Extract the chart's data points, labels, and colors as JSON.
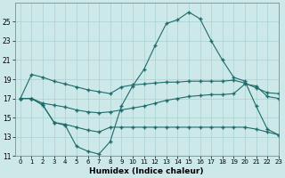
{
  "xlabel": "Humidex (Indice chaleur)",
  "background_color": "#cde8e8",
  "grid_color": "#aad0d0",
  "line_color": "#1e6b6b",
  "line1_y": [
    17,
    19.5,
    19.2,
    18.8,
    18.5,
    18.2,
    17.9,
    17.7,
    17.5,
    18.2,
    18.4,
    18.5,
    18.6,
    18.7,
    18.7,
    18.8,
    18.8,
    18.8,
    18.8,
    18.9,
    18.6,
    18.1,
    17.6,
    17.5
  ],
  "line2_y": [
    17,
    17,
    16.3,
    14.5,
    14.2,
    12.0,
    11.5,
    11.2,
    12.5,
    16.2,
    18.3,
    20.0,
    22.5,
    24.8,
    25.2,
    26.0,
    25.3,
    23.0,
    21.0,
    19.2,
    18.8,
    16.2,
    13.8,
    13.2
  ],
  "line3_y": [
    17,
    17,
    16.5,
    16.3,
    16.1,
    15.8,
    15.6,
    15.5,
    15.6,
    15.8,
    16.0,
    16.2,
    16.5,
    16.8,
    17.0,
    17.2,
    17.3,
    17.4,
    17.4,
    17.5,
    18.5,
    18.3,
    17.2,
    17.0
  ],
  "line4_y": [
    17,
    17,
    16.3,
    14.5,
    14.3,
    14.0,
    13.7,
    13.5,
    14.0,
    14.0,
    14.0,
    14.0,
    14.0,
    14.0,
    14.0,
    14.0,
    14.0,
    14.0,
    14.0,
    14.0,
    14.0,
    13.8,
    13.5,
    13.2
  ],
  "ylim": [
    11,
    27
  ],
  "xlim": [
    -0.5,
    23
  ],
  "yticks": [
    11,
    13,
    15,
    17,
    19,
    21,
    23,
    25
  ],
  "xticks": [
    0,
    1,
    2,
    3,
    4,
    5,
    6,
    7,
    8,
    9,
    10,
    11,
    12,
    13,
    14,
    15,
    16,
    17,
    18,
    19,
    20,
    21,
    22,
    23
  ]
}
